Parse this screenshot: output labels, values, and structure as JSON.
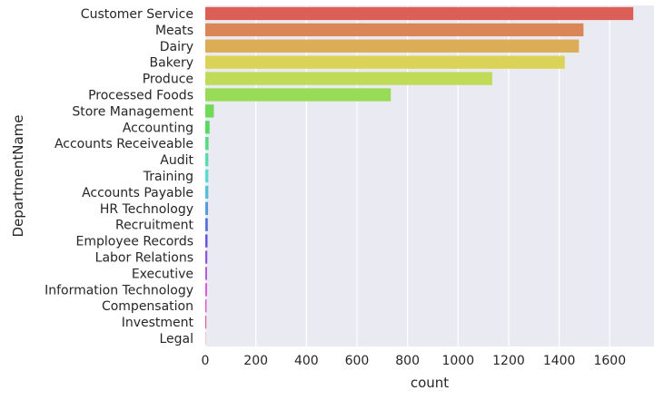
{
  "chart_data": {
    "type": "bar",
    "orientation": "horizontal",
    "xlabel": "count",
    "ylabel": "DepartmentName",
    "xlim": [
      0,
      1775
    ],
    "x_ticks": [
      "0",
      "200",
      "400",
      "600",
      "800",
      "1000",
      "1200",
      "1400",
      "1600"
    ],
    "grid": true,
    "background": "#eaeaf2",
    "categories": [
      "Customer Service",
      "Meats",
      "Dairy",
      "Bakery",
      "Produce",
      "Processed Foods",
      "Store Management",
      "Accounting",
      "Accounts Receiveable",
      "Audit",
      "Training",
      "Accounts Payable",
      "HR Technology",
      "Recruitment",
      "Employee Records",
      "Labor Relations",
      "Executive",
      "Information Technology",
      "Compensation",
      "Investment",
      "Legal"
    ],
    "values": [
      1693,
      1496,
      1478,
      1422,
      1135,
      734,
      34,
      17,
      13,
      12,
      12,
      12,
      11,
      10,
      9,
      8,
      7,
      7,
      5,
      4,
      1
    ],
    "colors": [
      "#db5f57",
      "#db8657",
      "#dbad57",
      "#dbd357",
      "#bfdb57",
      "#98db57",
      "#71db57",
      "#57db5e",
      "#57db84",
      "#57dbab",
      "#57dbd1",
      "#57c1db",
      "#579bdb",
      "#5774db",
      "#6557db",
      "#8c57db",
      "#b357db",
      "#d957db",
      "#db57ba",
      "#db5793",
      "#db576c"
    ]
  }
}
